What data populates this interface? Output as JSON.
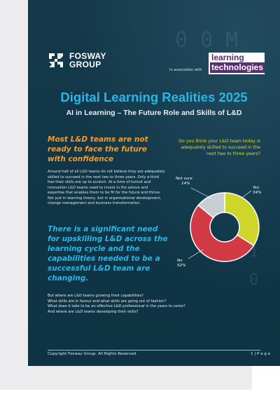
{
  "brand": {
    "fosway_line1": "FOSWAY",
    "fosway_line2": "GROUP",
    "assoc_text": "In association with",
    "lt_line1": "learning",
    "lt_line2": "technologies"
  },
  "title": "Digital Learning Realities 2025",
  "subtitle": "AI in Learning – The Future Role and Skills of L&D",
  "headline_orange": "Most L&D teams are not ready to face the future with confidence",
  "body_paragraph": "Around half of all L&D teams do not believe they are adequately skilled to succeed in the next two to three years. Only a third feel their skills are up to scratch. At a time of tumult and innovation L&D teams need to invest in the advice and expertise that enables them to be fit for the future and thrive. Not just in learning theory, but in organisational development, change management and business transformation.",
  "headline_cyan": "There is a significant need for upskilling L&D across the learning cycle and the capabilities needed to be a successful L&D team are changing.",
  "questions": [
    "But where are L&D teams growing their capabilities?",
    "What skills are in favour and what skills are going out of fashion?",
    "What does it take to be an effective L&D professional in the years to come?",
    "And where are L&D teams developing their skills?"
  ],
  "footer": {
    "copyright": "Copyright Fosway Group. All Rights Reserved.",
    "page": "1 | P a g e"
  },
  "chart_data": {
    "type": "pie",
    "title": "Do you think your L&D team today is adequately skilled to succeed in the next two to three years?",
    "slices": [
      {
        "label": "Yes",
        "value": 34,
        "display": "34%",
        "color": "#cfd62b"
      },
      {
        "label": "No",
        "value": 52,
        "display": "52%",
        "color": "#d13a44"
      },
      {
        "label": "Not sure",
        "value": 14,
        "display": "14%",
        "color": "#c9cdd4"
      }
    ],
    "donut": true
  }
}
